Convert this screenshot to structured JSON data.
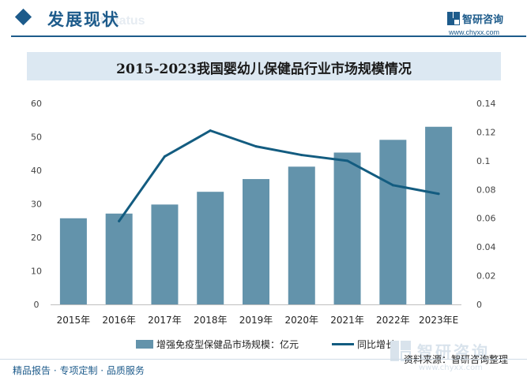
{
  "header": {
    "section_title": "发展现状",
    "section_ghost": "ent status",
    "brand_name": "智研咨询",
    "brand_url": "www.chyxx.com"
  },
  "chart_data": {
    "type": "bar",
    "title": "2015-2023我国婴幼儿保健品行业市场规模情况",
    "categories": [
      "2015年",
      "2016年",
      "2017年",
      "2018年",
      "2019年",
      "2020年",
      "2021年",
      "2022年",
      "2023年E"
    ],
    "series": [
      {
        "name": "增强免疫型保健品市场规模：亿元",
        "type": "bar",
        "axis": "left",
        "color": "#6393ab",
        "values": [
          25.7,
          27.1,
          29.8,
          33.6,
          37.4,
          41.1,
          45.3,
          49.1,
          53.0
        ]
      },
      {
        "name": "同比增长",
        "type": "line",
        "axis": "right",
        "color": "#135c80",
        "values": [
          null,
          0.058,
          0.103,
          0.121,
          0.11,
          0.104,
          0.1,
          0.083,
          0.077
        ]
      }
    ],
    "y_left": {
      "min": 0,
      "max": 60,
      "ticks": [
        "0",
        "10",
        "20",
        "30",
        "40",
        "50",
        "60"
      ]
    },
    "y_right": {
      "min": 0,
      "max": 0.14,
      "ticks": [
        "0",
        "0.02",
        "0.04",
        "0.06",
        "0.08",
        "0.1",
        "0.12",
        "0.14"
      ]
    },
    "grid": false,
    "legend_position": "bottom"
  },
  "source": {
    "text": "资料来源：智研咨询整理",
    "ghost_name": "智研咨询",
    "ghost_url": "www.chyxx.com"
  },
  "footer": {
    "text": "精品报告 · 专项定制 · 品质服务"
  },
  "colors": {
    "brand": "#1d5b8b",
    "bar": "#6393ab",
    "line": "#135c80",
    "title_band": "#dce8f2"
  }
}
